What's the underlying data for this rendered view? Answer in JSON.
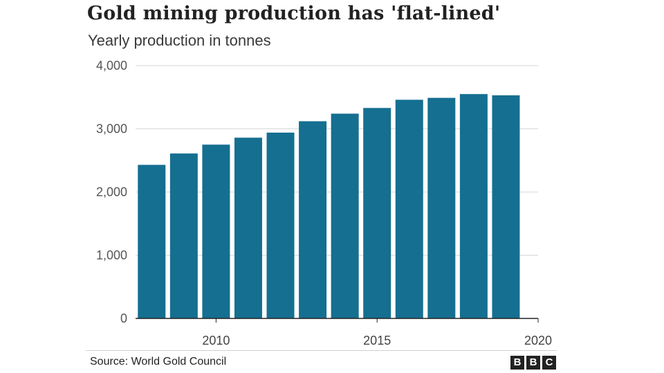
{
  "chart_data": {
    "type": "bar",
    "title": "Gold mining production has 'flat-lined'",
    "subtitle": "Yearly production in tonnes",
    "categories": [
      2008,
      2009,
      2010,
      2011,
      2012,
      2013,
      2014,
      2015,
      2016,
      2017,
      2018,
      2019
    ],
    "values": [
      2430,
      2610,
      2750,
      2860,
      2940,
      3120,
      3240,
      3330,
      3460,
      3490,
      3550,
      3530
    ],
    "ylim": [
      0,
      4000
    ],
    "yticks": [
      0,
      1000,
      2000,
      3000,
      4000
    ],
    "ytick_labels": [
      "0",
      "1,000",
      "2,000",
      "3,000",
      "4,000"
    ],
    "xlim": [
      2007.5,
      2020
    ],
    "xticks": [
      2010,
      2015,
      2020
    ],
    "xtick_labels": [
      "2010",
      "2015",
      "2020"
    ],
    "xlabel": "",
    "ylabel": "",
    "grid": true,
    "bar_color": "#156f91"
  },
  "footer": {
    "source": "Source: World Gold Council",
    "logo": [
      "B",
      "B",
      "C"
    ]
  }
}
